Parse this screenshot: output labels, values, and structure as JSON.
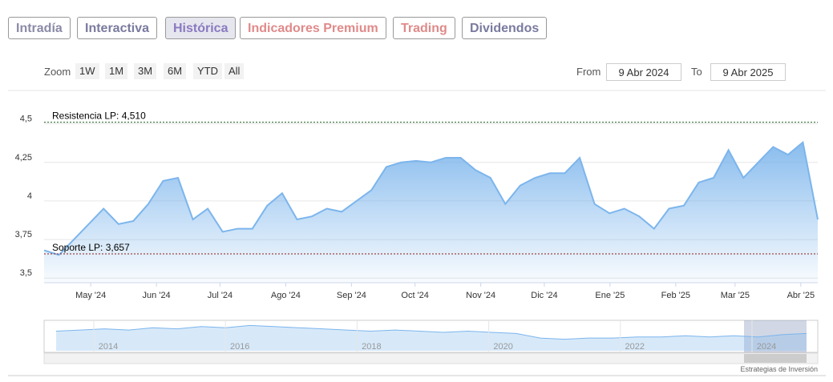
{
  "tabs": [
    "Intradía",
    "Interactiva",
    "Histórica",
    "Indicadores Premium",
    "Trading",
    "Dividendos"
  ],
  "zoom": {
    "label": "Zoom",
    "buttons": [
      "1W",
      "1M",
      "3M",
      "6M",
      "YTD",
      "All"
    ]
  },
  "range": {
    "from_label": "From",
    "from": "9 Abr 2024",
    "to_label": "To",
    "to": "9 Abr 2025"
  },
  "credit": "Estrategias de Inversión",
  "chart_data": {
    "type": "area",
    "color": "#7cb5ec",
    "xlim": [
      "2024-04-09",
      "2025-04-09"
    ],
    "xticks": [
      {
        "value": "2024-05",
        "label": "May '24"
      },
      {
        "value": "2024-06",
        "label": "Jun '24"
      },
      {
        "value": "2024-07",
        "label": "Jul '24"
      },
      {
        "value": "2024-08",
        "label": "Ago '24"
      },
      {
        "value": "2024-09",
        "label": "Sep '24"
      },
      {
        "value": "2024-10",
        "label": "Oct '24"
      },
      {
        "value": "2024-11",
        "label": "Nov '24"
      },
      {
        "value": "2024-12",
        "label": "Dic '24"
      },
      {
        "value": "2025-01",
        "label": "Ene '25"
      },
      {
        "value": "2025-02",
        "label": "Feb '25"
      },
      {
        "value": "2025-03",
        "label": "Mar '25"
      },
      {
        "value": "2025-04",
        "label": "Abr '25"
      }
    ],
    "ylim": [
      3.47,
      4.69
    ],
    "yticks": [
      {
        "value": 3.5,
        "label": "3,5"
      },
      {
        "value": 3.75,
        "label": "3,75"
      },
      {
        "value": 4,
        "label": "4"
      },
      {
        "value": 4.25,
        "label": "4,25"
      },
      {
        "value": 4.5,
        "label": "4,5"
      }
    ],
    "grid": true,
    "values": [
      3.68,
      3.65,
      3.75,
      3.85,
      3.95,
      3.85,
      3.87,
      3.98,
      4.13,
      4.15,
      3.88,
      3.95,
      3.8,
      3.82,
      3.82,
      3.97,
      4.05,
      3.88,
      3.9,
      3.95,
      3.93,
      4.0,
      4.07,
      4.22,
      4.25,
      4.26,
      4.25,
      4.28,
      4.28,
      4.2,
      4.15,
      3.98,
      4.1,
      4.15,
      4.18,
      4.18,
      4.28,
      3.98,
      3.92,
      3.95,
      3.9,
      3.82,
      3.95,
      3.97,
      4.12,
      4.15,
      4.33,
      4.15,
      4.25,
      4.35,
      4.3,
      4.38,
      3.88
    ],
    "annotations": [
      {
        "label": "Resistencia LP: 4,510",
        "value": 4.51,
        "color": "#1a5c1a"
      },
      {
        "label": "Soporte LP: 3,657",
        "value": 3.657,
        "color": "#8b1a1a"
      }
    ],
    "navigator": {
      "ylim": [
        2.5,
        5
      ],
      "xticks": [
        2014,
        2016,
        2018,
        2020,
        2022,
        2024
      ],
      "values": [
        4.2,
        4.3,
        4.4,
        4.3,
        4.5,
        4.4,
        4.6,
        4.5,
        4.7,
        4.6,
        4.5,
        4.4,
        4.3,
        4.2,
        4.3,
        4.2,
        4.1,
        4.2,
        4.1,
        4.0,
        3.6,
        3.5,
        3.6,
        3.6,
        3.7,
        3.7,
        3.8,
        3.7,
        3.8,
        3.7,
        3.9,
        4.0
      ]
    }
  }
}
